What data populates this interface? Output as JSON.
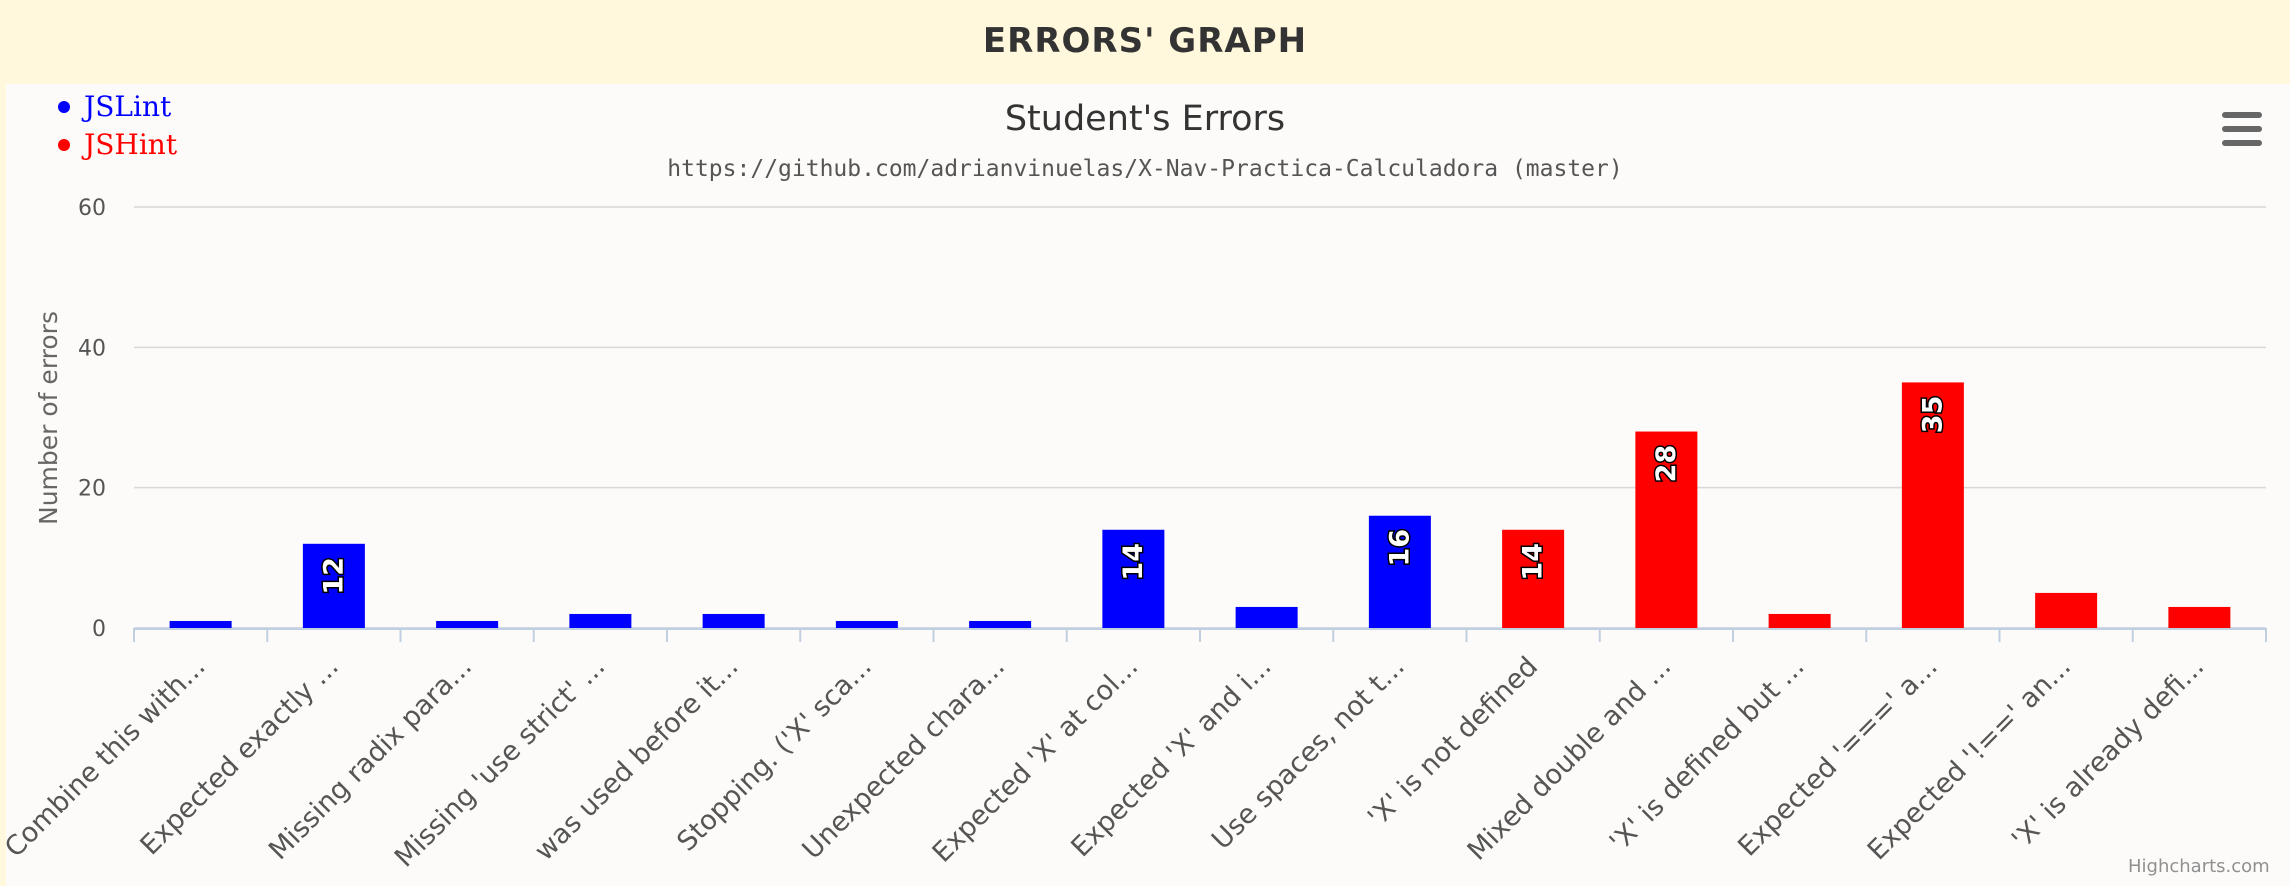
{
  "page": {
    "title": "ERRORS' GRAPH"
  },
  "menu": {
    "icon": "hamburger-menu-icon"
  },
  "credits": "Highcharts.com",
  "colors": {
    "jslint": "#0000ff",
    "jshint": "#ff0000"
  },
  "chart_data": {
    "type": "bar",
    "title": "Student's Errors",
    "subtitle": "https://github.com/adrianvinuelas/X-Nav-Practica-Calculadora (master)",
    "xlabel": "",
    "ylabel": "Number of errors",
    "ylim": [
      0,
      60
    ],
    "yticks": [
      0,
      20,
      40,
      60
    ],
    "grid": true,
    "legend_position": "top-left",
    "legend": [
      {
        "name": "JSLint",
        "color": "#0000ff"
      },
      {
        "name": "JSHint",
        "color": "#ff0000"
      }
    ],
    "categories": [
      "Combine this with...",
      "Expected exactly ...",
      "Missing radix para...",
      "Missing 'use strict' ...",
      "was used before it...",
      "Stopping. ('X' sca...",
      "Unexpected chara...",
      "Expected 'X' at col...",
      "Expected 'X' and i...",
      "Use spaces, not t...",
      "'X' is not defined",
      "Mixed double and ...",
      "'X' is defined but ...",
      "Expected '===' a...",
      "Expected '!==' an...",
      "'X' is already defi..."
    ],
    "values": [
      1,
      12,
      1,
      2,
      2,
      1,
      1,
      14,
      3,
      16,
      14,
      28,
      2,
      35,
      5,
      3
    ],
    "series_index": [
      0,
      0,
      0,
      0,
      0,
      0,
      0,
      0,
      0,
      0,
      1,
      1,
      1,
      1,
      1,
      1
    ],
    "data_labels": [
      "",
      "12",
      "",
      "",
      "",
      "",
      "",
      "14",
      "",
      "16",
      "14",
      "28",
      "",
      "35",
      "",
      ""
    ]
  }
}
